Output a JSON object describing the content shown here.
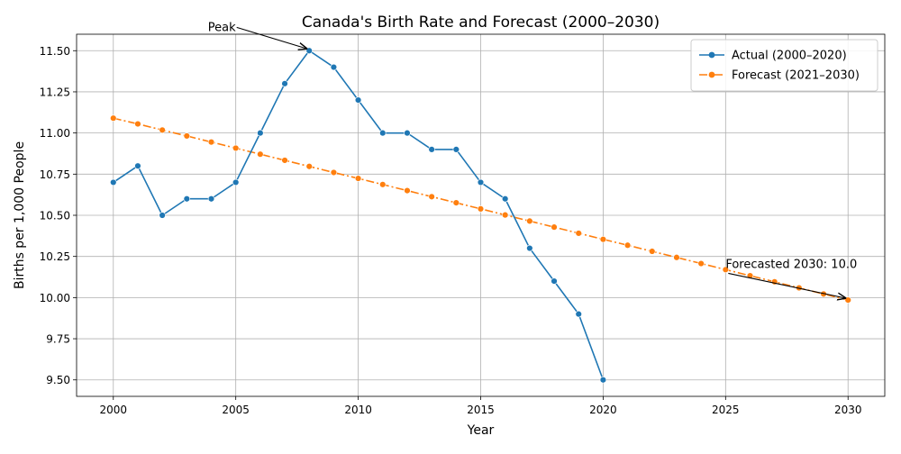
{
  "chart_data": {
    "type": "line",
    "title": "Canada's Birth Rate and Forecast (2000–2030)",
    "xlabel": "Year",
    "ylabel": "Births per 1,000 People",
    "xlim": [
      1998.5,
      2031.5
    ],
    "ylim": [
      9.4,
      11.6
    ],
    "x_ticks": [
      2000,
      2005,
      2010,
      2015,
      2020,
      2025,
      2030
    ],
    "y_ticks": [
      9.5,
      9.75,
      10.0,
      10.25,
      10.5,
      10.75,
      11.0,
      11.25,
      11.5
    ],
    "grid": true,
    "legend_position": "top-right",
    "series": [
      {
        "name": "Actual (2000–2020)",
        "color": "#1f77b4",
        "line_style": "solid",
        "marker": "circle",
        "x": [
          2000,
          2001,
          2002,
          2003,
          2004,
          2005,
          2006,
          2007,
          2008,
          2009,
          2010,
          2011,
          2012,
          2013,
          2014,
          2015,
          2016,
          2017,
          2018,
          2019,
          2020
        ],
        "values": [
          10.7,
          10.8,
          10.5,
          10.6,
          10.6,
          10.7,
          11.0,
          11.3,
          11.5,
          11.4,
          11.2,
          11.0,
          11.0,
          10.9,
          10.9,
          10.7,
          10.6,
          10.3,
          10.1,
          9.9,
          9.5
        ]
      },
      {
        "name": "Forecast (2021–2030)",
        "color": "#ff7f0e",
        "line_style": "dashdot",
        "marker": "circle",
        "x": [
          2000,
          2001,
          2002,
          2003,
          2004,
          2005,
          2006,
          2007,
          2008,
          2009,
          2010,
          2011,
          2012,
          2013,
          2014,
          2015,
          2016,
          2017,
          2018,
          2019,
          2020,
          2021,
          2022,
          2023,
          2024,
          2025,
          2026,
          2027,
          2028,
          2029,
          2030
        ],
        "values": [
          11.09,
          11.055,
          11.018,
          10.982,
          10.945,
          10.908,
          10.871,
          10.834,
          10.797,
          10.76,
          10.724,
          10.687,
          10.65,
          10.613,
          10.576,
          10.539,
          10.502,
          10.465,
          10.428,
          10.391,
          10.354,
          10.318,
          10.281,
          10.244,
          10.207,
          10.17,
          10.133,
          10.096,
          10.059,
          10.022,
          9.985
        ]
      }
    ],
    "annotations": [
      {
        "text": "Peak",
        "point": [
          2008,
          11.5
        ],
        "label_at": [
          2005,
          11.62
        ],
        "anchor": "end"
      },
      {
        "text": "Forecasted 2030: 10.0",
        "point": [
          2030,
          9.985
        ],
        "label_at": [
          2025,
          10.18
        ],
        "anchor": "start"
      }
    ]
  }
}
